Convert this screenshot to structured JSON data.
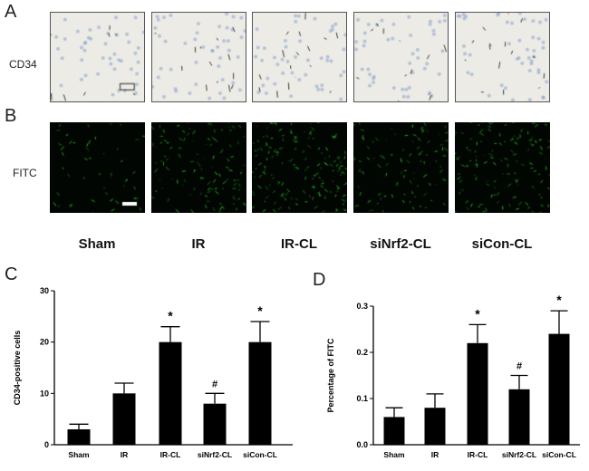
{
  "panels": {
    "a": "A",
    "b": "B",
    "c": "C",
    "d": "D"
  },
  "rows": {
    "a": "CD34",
    "b": "FITC"
  },
  "groups": [
    "Sham",
    "IR",
    "IR-CL",
    "siNrf2-CL",
    "siCon-CL"
  ],
  "colors": {
    "bar": "#000000",
    "fitc": "#22c022",
    "ihc_bg": "#ecebe5",
    "nuclei": "#8fa6cf"
  },
  "chart_data": [
    {
      "type": "bar",
      "panel": "C",
      "categories": [
        "Sham",
        "IR",
        "IR-CL",
        "siNrf2-CL",
        "siCon-CL"
      ],
      "values": [
        3,
        10,
        20,
        8,
        20
      ],
      "errors": [
        1,
        2,
        3,
        2,
        4
      ],
      "annotations": [
        "",
        "",
        "*",
        "#",
        "*"
      ],
      "ylabel": "CD34-positive cells",
      "ylim": [
        0,
        30
      ],
      "yticks": [
        "0",
        "10",
        "20",
        "30"
      ]
    },
    {
      "type": "bar",
      "panel": "D",
      "categories": [
        "Sham",
        "IR",
        "IR-CL",
        "siNrf2-CL",
        "siCon-CL"
      ],
      "values": [
        0.06,
        0.08,
        0.22,
        0.12,
        0.24
      ],
      "errors": [
        0.02,
        0.03,
        0.04,
        0.03,
        0.05
      ],
      "annotations": [
        "",
        "",
        "*",
        "#",
        "*"
      ],
      "ylabel": "Percentage of FITC",
      "ylim": [
        0,
        0.3
      ],
      "yticks": [
        "0.0",
        "0.1",
        "0.2",
        "0.3"
      ]
    }
  ]
}
